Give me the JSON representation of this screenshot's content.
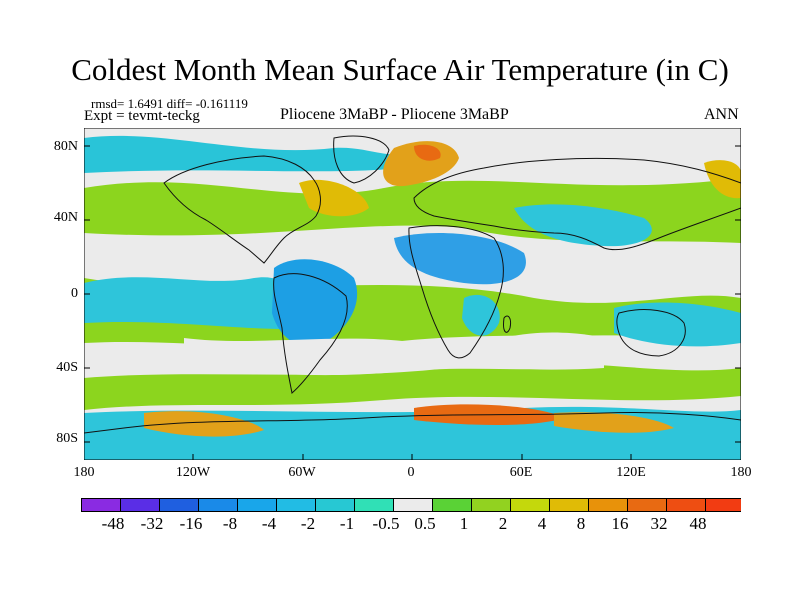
{
  "title": "Coldest Month Mean Surface Air Temperature (in C)",
  "stats_line": "rmsd= 1.6491 diff= -0.161119",
  "expt_line": "Expt = tevmt-teckg",
  "center_label": "Pliocene   3MaBP - Pliocene   3MaBP",
  "season": "ANN",
  "y_ticks": [
    "80N",
    "40N",
    "0",
    "40S",
    "80S"
  ],
  "x_ticks": [
    "180",
    "120W",
    "60W",
    "0",
    "60E",
    "120E",
    "180"
  ],
  "colorbar": {
    "labels": [
      "-48",
      "-32",
      "-16",
      "-8",
      "-4",
      "-2",
      "-1",
      "-0.5",
      "0.5",
      "1",
      "2",
      "4",
      "8",
      "16",
      "32",
      "48"
    ],
    "colors": [
      "#8a2be2",
      "#5a2ee6",
      "#1f5fe0",
      "#1a8ae8",
      "#19a6ea",
      "#22bce4",
      "#27c8d3",
      "#30e0b6",
      "#ebebeb",
      "#5ad236",
      "#92d220",
      "#c4d80c",
      "#e0bb06",
      "#e8920a",
      "#e86a12",
      "#ee4e12",
      "#f23c12"
    ]
  },
  "colors": {
    "ocean_base": "#ebebeb",
    "coastline": "#111111"
  }
}
